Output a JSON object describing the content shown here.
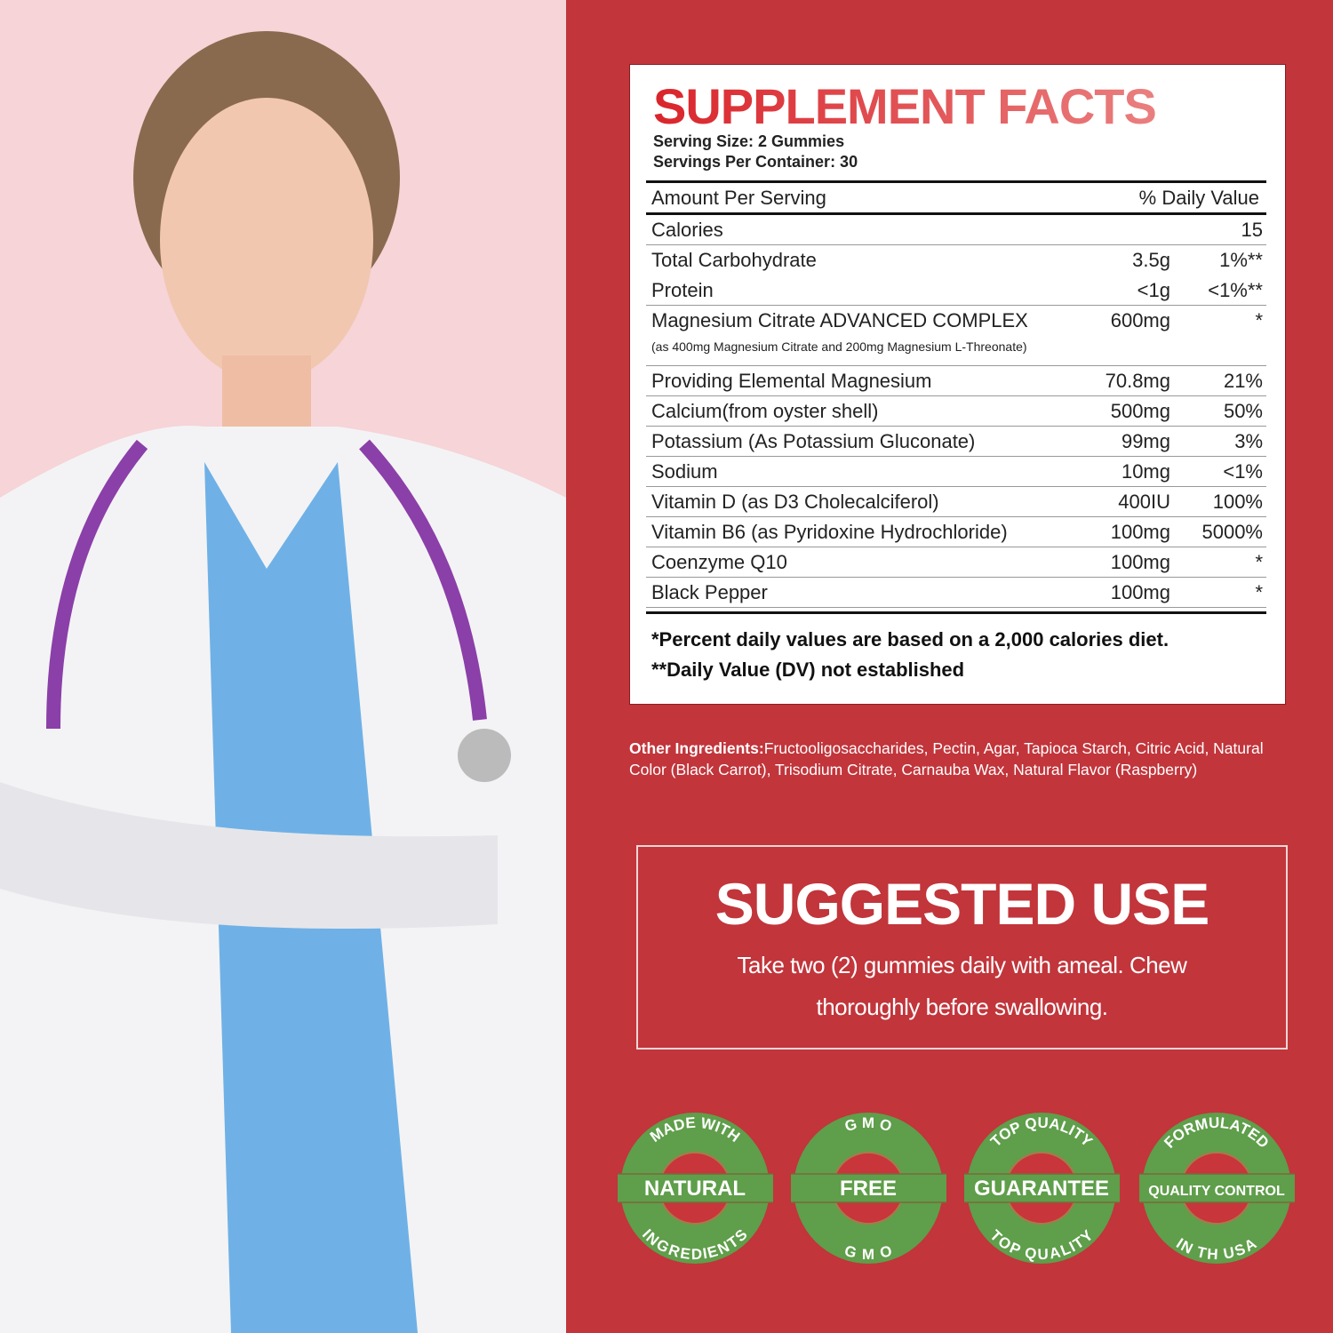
{
  "facts": {
    "title": "SUPPLEMENT FACTS",
    "serving_size": "Serving Size: 2 Gummies",
    "servings_per_container": "Servings Per Container: 30",
    "header_amount": "Amount Per Serving",
    "header_dv": "% Daily Value",
    "rows": [
      {
        "name": "Calories",
        "amount": "",
        "dv": "15"
      },
      {
        "name": "Total Carbohydrate",
        "amount": "3.5g",
        "dv": "1%**"
      },
      {
        "name": "Protein",
        "amount": "<1g",
        "dv": "<1%**"
      },
      {
        "name": "Magnesium Citrate ADVANCED COMPLEX",
        "amount": "600mg",
        "dv": "*",
        "sub": "(as 400mg Magnesium Citrate and 200mg Magnesium L-Threonate)"
      },
      {
        "name": "Providing Elemental Magnesium",
        "amount": "70.8mg",
        "dv": "21%"
      },
      {
        "name": "Calcium(from oyster shell)",
        "amount": "500mg",
        "dv": "50%"
      },
      {
        "name": "Potassium (As Potassium Gluconate)",
        "amount": "99mg",
        "dv": "3%"
      },
      {
        "name": "Sodium",
        "amount": "10mg",
        "dv": "<1%"
      },
      {
        "name": "Vitamin D (as D3 Cholecalciferol)",
        "amount": "400IU",
        "dv": "100%"
      },
      {
        "name": "Vitamin B6 (as Pyridoxine Hydrochloride)",
        "amount": "100mg",
        "dv": "5000%"
      },
      {
        "name": "Coenzyme Q10",
        "amount": "100mg",
        "dv": "*"
      },
      {
        "name": "Black Pepper",
        "amount": "100mg",
        "dv": "*"
      }
    ],
    "note1": "*Percent daily values are based on a 2,000 calories diet.",
    "note2": "**Daily Value (DV) not established"
  },
  "other": {
    "label": "Other Ingredients:",
    "text": "Fructooligosaccharides, Pectin, Agar, Tapioca Starch, Citric Acid, Natural Color (Black Carrot), Trisodium Citrate, Carnauba Wax, Natural Flavor (Raspberry)"
  },
  "suggested": {
    "title": "SUGGESTED USE",
    "text": "Take two (2) gummies daily with ameal. Chew thoroughly before swallowing."
  },
  "badges": [
    {
      "top": "MADE WITH",
      "band": "NATURAL",
      "bottom": "INGREDIENTS"
    },
    {
      "top": "G M O",
      "band": "FREE",
      "bottom": "G M O"
    },
    {
      "top": "TOP QUALITY",
      "band": "GUARANTEE",
      "bottom": "TOP QUALITY"
    },
    {
      "top": "FORMULATED",
      "band": "QUALITY CONTROL",
      "bottom": "IN TH USA"
    }
  ],
  "colors": {
    "background": "#c1353b",
    "left_panel": "#f6d4d7",
    "badge_green": "#5f9e4a"
  }
}
